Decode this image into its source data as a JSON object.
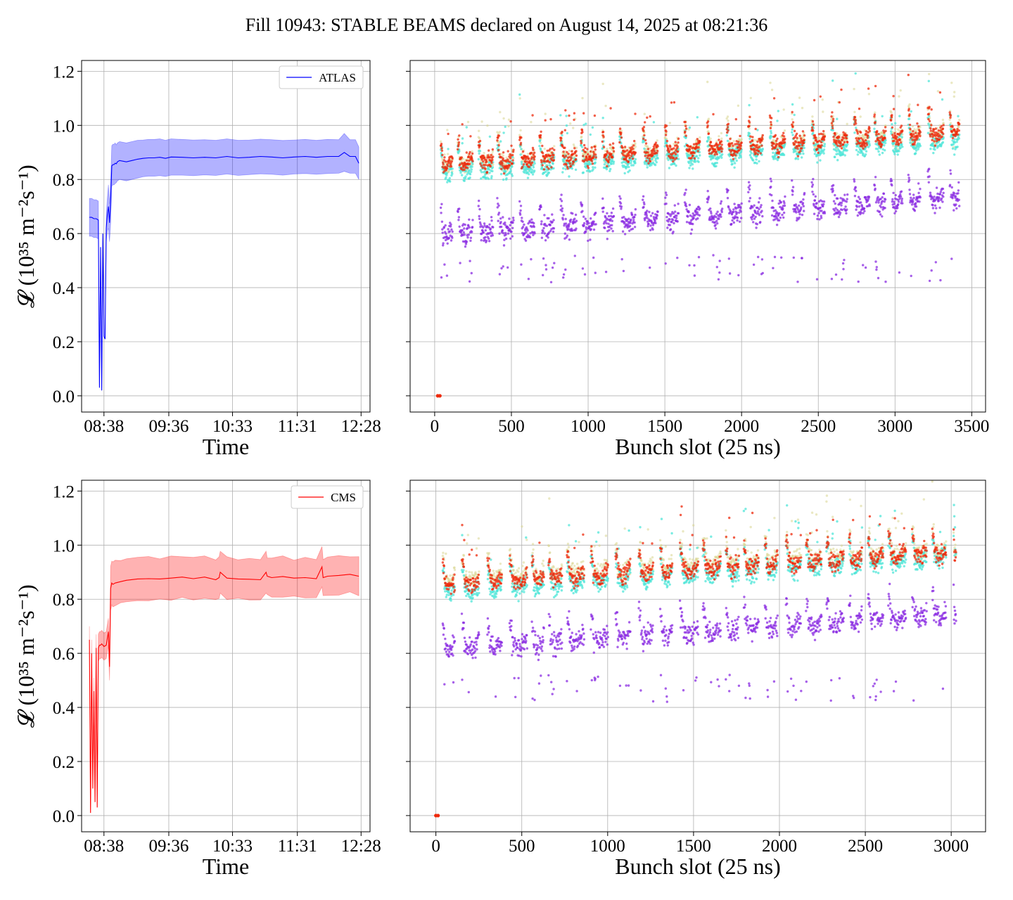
{
  "figure_title": "Fill 10943: STABLE BEAMS declared on August 14, 2025 at 08:21:36",
  "colors": {
    "atlas": "#0000ff",
    "cms": "#ff0000",
    "scatter_high": "#ee2a0c",
    "scatter_cyan": "#4fe6d8",
    "scatter_khaki": "#d8d690",
    "scatter_purple": "#8a2be2",
    "grid": "#b0b0b0"
  },
  "chart_data": [
    {
      "id": "atlas-time",
      "type": "line",
      "legend": [
        "ATLAS"
      ],
      "legend_position": "top-right",
      "xlabel": "Time",
      "ylabel": "𝓛 (10³⁵ m⁻²s⁻¹)",
      "x_ticks": [
        "08:38",
        "09:36",
        "10:33",
        "11:31",
        "12:28"
      ],
      "y_ticks": [
        "0.0",
        "0.2",
        "0.4",
        "0.6",
        "0.8",
        "1.0",
        "1.2"
      ],
      "ylim": [
        -0.06,
        1.24
      ],
      "xlim_minutes": [
        -20,
        238
      ],
      "grid": true,
      "series": [
        {
          "name": "ATLAS",
          "x_minutes": [
            -13,
            -11,
            -9,
            -7,
            -5,
            -4,
            -3,
            -2,
            -1,
            0,
            1,
            2,
            3,
            4,
            5,
            6,
            7,
            8,
            9,
            10,
            11,
            12,
            14,
            20,
            25,
            30,
            35,
            40,
            45,
            50,
            55,
            60,
            70,
            80,
            90,
            100,
            110,
            120,
            130,
            140,
            150,
            160,
            170,
            180,
            190,
            200,
            210,
            215,
            220,
            225,
            228
          ],
          "values": [
            0.66,
            0.66,
            0.655,
            0.655,
            0.65,
            0.03,
            0.55,
            0.02,
            0.6,
            0.22,
            0.21,
            0.62,
            0.67,
            0.7,
            0.64,
            0.72,
            0.85,
            0.855,
            0.855,
            0.86,
            0.858,
            0.865,
            0.87,
            0.865,
            0.87,
            0.875,
            0.878,
            0.88,
            0.88,
            0.882,
            0.878,
            0.883,
            0.882,
            0.88,
            0.882,
            0.88,
            0.885,
            0.88,
            0.882,
            0.885,
            0.883,
            0.88,
            0.883,
            0.885,
            0.882,
            0.885,
            0.885,
            0.9,
            0.885,
            0.885,
            0.86
          ],
          "band_half_width": [
            0.07,
            0.07,
            0.07,
            0.07,
            0.07,
            0.0,
            0.0,
            0.0,
            0.0,
            0.0,
            0.0,
            0.05,
            0.06,
            0.08,
            0.07,
            0.08,
            0.075,
            0.075,
            0.075,
            0.075,
            0.07,
            0.07,
            0.07,
            0.07,
            0.07,
            0.07,
            0.068,
            0.068,
            0.068,
            0.068,
            0.067,
            0.067,
            0.066,
            0.066,
            0.065,
            0.065,
            0.065,
            0.065,
            0.064,
            0.064,
            0.064,
            0.064,
            0.063,
            0.063,
            0.063,
            0.063,
            0.062,
            0.07,
            0.062,
            0.062,
            0.06
          ]
        }
      ]
    },
    {
      "id": "atlas-bunch",
      "type": "scatter",
      "xlabel": "Bunch slot (25 ns)",
      "x_ticks": [
        0,
        500,
        1000,
        1500,
        2000,
        2500,
        3000,
        3500
      ],
      "xlim": [
        -160,
        3590
      ],
      "ylim": [
        -0.06,
        1.24
      ],
      "grid": true,
      "n_bunches": 3420,
      "origin_point": [
        20,
        0.0
      ],
      "series": [
        {
          "name": "",
          "color_key": "scatter_purple",
          "base_start": 0.58,
          "base_end": 0.72,
          "jitter": 0.06,
          "low_tail": 0.42
        },
        {
          "name": "",
          "color_key": "scatter_khaki",
          "base_start": 0.84,
          "base_end": 0.96,
          "jitter": 0.05,
          "low_tail": 0.0
        },
        {
          "name": "",
          "color_key": "scatter_cyan",
          "base_start": 0.81,
          "base_end": 0.93,
          "jitter": 0.05,
          "low_tail": 0.0
        },
        {
          "name": "",
          "color_key": "scatter_high",
          "base_start": 0.84,
          "base_end": 0.96,
          "jitter": 0.05,
          "low_tail": 0.0
        }
      ]
    },
    {
      "id": "cms-time",
      "type": "line",
      "legend": [
        "CMS"
      ],
      "legend_position": "top-right",
      "xlabel": "Time",
      "ylabel": "𝓛 (10³⁵ m⁻²s⁻¹)",
      "x_ticks": [
        "08:38",
        "09:36",
        "10:33",
        "11:31",
        "12:28"
      ],
      "y_ticks": [
        "0.0",
        "0.2",
        "0.4",
        "0.6",
        "0.8",
        "1.0",
        "1.2"
      ],
      "ylim": [
        -0.06,
        1.24
      ],
      "xlim_minutes": [
        -20,
        238
      ],
      "grid": true,
      "series": [
        {
          "name": "CMS",
          "x_minutes": [
            -13,
            -12,
            -11,
            -10,
            -9,
            -8,
            -7,
            -6,
            -5,
            -4,
            -3,
            -2,
            0,
            2,
            4,
            5,
            6,
            7,
            8,
            10,
            15,
            20,
            30,
            40,
            50,
            60,
            70,
            80,
            90,
            100,
            103,
            104,
            110,
            120,
            130,
            140,
            145,
            146,
            150,
            160,
            170,
            180,
            190,
            195,
            196,
            200,
            210,
            220,
            228
          ],
          "values": [
            0.65,
            0.01,
            0.6,
            0.1,
            0.46,
            0.05,
            0.62,
            0.03,
            0.62,
            0.63,
            0.63,
            0.635,
            0.625,
            0.63,
            0.68,
            0.55,
            0.84,
            0.86,
            0.855,
            0.86,
            0.865,
            0.87,
            0.875,
            0.876,
            0.875,
            0.878,
            0.882,
            0.876,
            0.882,
            0.872,
            0.88,
            0.9,
            0.878,
            0.875,
            0.874,
            0.872,
            0.9,
            0.885,
            0.88,
            0.884,
            0.878,
            0.88,
            0.876,
            0.92,
            0.88,
            0.885,
            0.888,
            0.892,
            0.885
          ]
        }
      ]
    },
    {
      "id": "cms-bunch",
      "type": "scatter",
      "xlabel": "Bunch slot (25 ns)",
      "x_ticks": [
        0,
        500,
        1000,
        1500,
        2000,
        2500,
        3000
      ],
      "xlim": [
        -150,
        3200
      ],
      "ylim": [
        -0.06,
        1.24
      ],
      "grid": true,
      "n_bunches": 3030,
      "origin_point": [
        0,
        0.0
      ],
      "series": [
        {
          "name": "",
          "color_key": "scatter_purple",
          "base_start": 0.6,
          "base_end": 0.73,
          "jitter": 0.06,
          "low_tail": 0.42
        },
        {
          "name": "",
          "color_key": "scatter_khaki",
          "base_start": 0.86,
          "base_end": 0.97,
          "jitter": 0.05,
          "low_tail": 0.0
        },
        {
          "name": "",
          "color_key": "scatter_cyan",
          "base_start": 0.81,
          "base_end": 0.94,
          "jitter": 0.05,
          "low_tail": 0.0
        },
        {
          "name": "",
          "color_key": "scatter_high",
          "base_start": 0.84,
          "base_end": 0.96,
          "jitter": 0.05,
          "low_tail": 0.0
        }
      ]
    }
  ]
}
